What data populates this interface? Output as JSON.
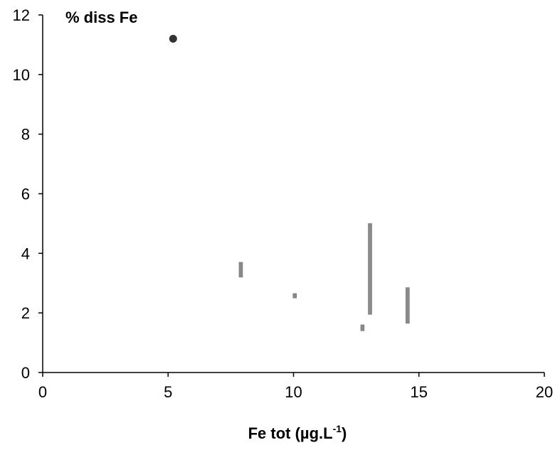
{
  "chart_data": {
    "type": "scatter",
    "title": "",
    "xlabel": "Fe tot (µg.L",
    "xlabel_superscript": "-1",
    "xlabel_close": ")",
    "ylabel": "% diss Fe",
    "xlim": [
      0,
      20
    ],
    "ylim": [
      0,
      12
    ],
    "x_ticks": [
      "0",
      "5",
      "10",
      "15",
      "20"
    ],
    "y_ticks": [
      "0",
      "2",
      "4",
      "6",
      "8",
      "10",
      "12"
    ],
    "grid": false,
    "legend": "none",
    "colors": {
      "axis": "#000000",
      "point": "#333333",
      "range_bar": "#8a8a8a"
    },
    "points": [
      {
        "x": 5.2,
        "y": 11.2
      }
    ],
    "ranges": [
      {
        "x": 7.9,
        "y_low": 3.2,
        "y_high": 3.7
      },
      {
        "x": 10.05,
        "y_low": 2.5,
        "y_high": 2.65
      },
      {
        "x": 12.75,
        "y_low": 1.4,
        "y_high": 1.6
      },
      {
        "x": 13.05,
        "y_low": 1.95,
        "y_high": 5.0
      },
      {
        "x": 14.55,
        "y_low": 1.65,
        "y_high": 2.85
      }
    ]
  }
}
